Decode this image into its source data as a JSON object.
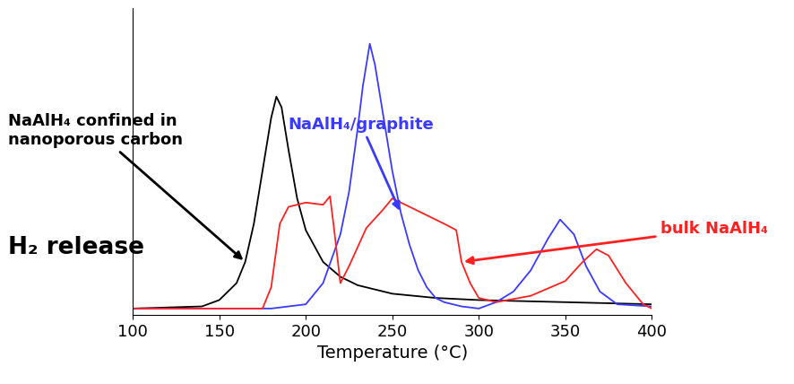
{
  "chart_data": {
    "type": "line",
    "x_label": "Temperature (°C)",
    "xlim": [
      100,
      400
    ],
    "xticks": [
      100,
      150,
      200,
      250,
      300,
      350,
      400
    ],
    "ylim": [
      -0.03,
      1.42
    ],
    "tick_labels": "x",
    "grid": false,
    "annotations": [
      "H₂ release"
    ],
    "series": [
      {
        "name": "NaAlH₄ confined in\nnanoporous carbon",
        "color": "#000000",
        "line_style": "solid",
        "x": [
          100,
          140,
          150,
          160,
          165,
          170,
          175,
          180,
          183,
          186,
          190,
          195,
          200,
          210,
          220,
          230,
          250,
          275,
          300,
          350,
          400
        ],
        "values": [
          0,
          0.01,
          0.04,
          0.12,
          0.22,
          0.4,
          0.65,
          0.9,
          1.0,
          0.95,
          0.75,
          0.52,
          0.37,
          0.22,
          0.15,
          0.11,
          0.07,
          0.05,
          0.04,
          0.03,
          0.02
        ]
      },
      {
        "name": "NaAlH₄/graphite",
        "color": "#3a3aff",
        "line_style": "solid",
        "x": [
          100,
          180,
          200,
          210,
          220,
          225,
          230,
          233,
          237,
          240,
          245,
          250,
          255,
          260,
          265,
          270,
          275,
          280,
          290,
          300,
          310,
          320,
          330,
          340,
          347,
          355,
          362,
          370,
          380,
          400
        ],
        "values": [
          0,
          0,
          0.02,
          0.12,
          0.35,
          0.55,
          0.85,
          1.05,
          1.25,
          1.15,
          0.9,
          0.65,
          0.45,
          0.3,
          0.18,
          0.1,
          0.05,
          0.03,
          0.01,
          0.0,
          0.03,
          0.08,
          0.18,
          0.33,
          0.42,
          0.35,
          0.2,
          0.08,
          0.02,
          0.01
        ]
      },
      {
        "name": "bulk NaAlH₄",
        "color": "#ff2020",
        "line_style": "solid",
        "x": [
          100,
          175,
          180,
          185,
          190,
          200,
          210,
          214,
          216,
          220,
          225,
          235,
          245,
          250,
          255,
          260,
          270,
          280,
          287,
          290,
          295,
          300,
          310,
          330,
          350,
          360,
          368,
          375,
          385,
          395,
          400
        ],
        "values": [
          0,
          0,
          0.1,
          0.4,
          0.48,
          0.5,
          0.49,
          0.53,
          0.4,
          0.12,
          0.2,
          0.38,
          0.47,
          0.52,
          0.5,
          0.48,
          0.44,
          0.4,
          0.37,
          0.22,
          0.12,
          0.05,
          0.03,
          0.06,
          0.13,
          0.22,
          0.28,
          0.25,
          0.12,
          0.02,
          0.0
        ]
      }
    ]
  }
}
